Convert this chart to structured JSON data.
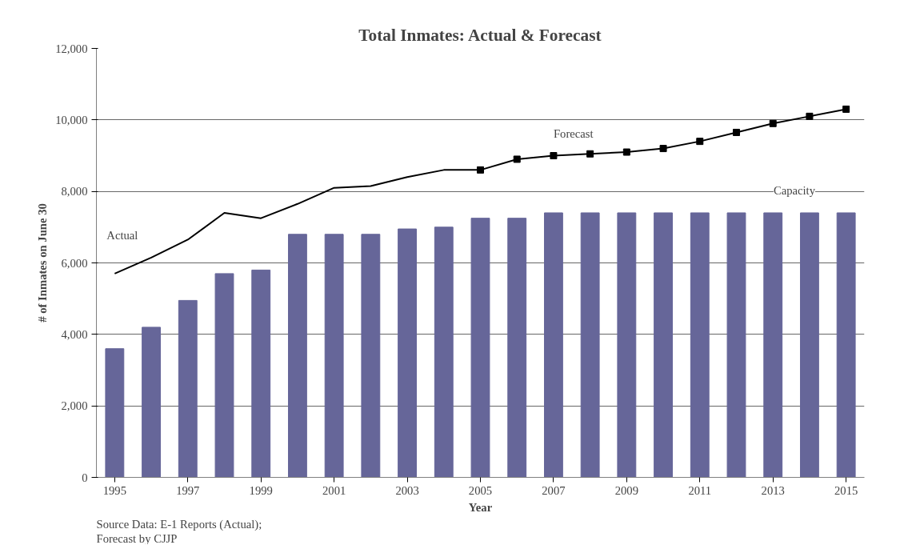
{
  "chart_data": {
    "type": "bar",
    "title": "Total Inmates: Actual & Forecast",
    "xlabel": "Year",
    "ylabel": "# of Inmates on June 30",
    "x": [
      1995,
      1996,
      1997,
      1998,
      1999,
      2000,
      2001,
      2002,
      2003,
      2004,
      2005,
      2006,
      2007,
      2008,
      2009,
      2010,
      2011,
      2012,
      2013,
      2014,
      2015
    ],
    "series": [
      {
        "name": "Capacity",
        "color": "#666699",
        "values": [
          3600,
          4200,
          4950,
          5700,
          5800,
          6800,
          6800,
          6800,
          6950,
          7000,
          7250,
          7250,
          7400,
          7400,
          7400,
          7400,
          7400,
          7400,
          7400,
          7400,
          7400
        ]
      },
      {
        "name": "Actual",
        "type": "line",
        "color": "#000000",
        "marker": "none",
        "x": [
          1995,
          1996,
          1997,
          1998,
          1999,
          2000,
          2001,
          2002,
          2003,
          2004,
          2005
        ],
        "values": [
          5700,
          6150,
          6650,
          7400,
          7250,
          7650,
          8100,
          8150,
          8400,
          8600,
          8600
        ]
      },
      {
        "name": "Forecast",
        "type": "line",
        "color": "#000000",
        "marker": "square",
        "x": [
          2005,
          2006,
          2007,
          2008,
          2009,
          2010,
          2011,
          2012,
          2013,
          2014,
          2015
        ],
        "values": [
          8600,
          8900,
          9000,
          9050,
          9100,
          9200,
          9400,
          9650,
          9900,
          10100,
          10300
        ]
      }
    ],
    "xlim": [
      1994.5,
      2015.5
    ],
    "xticks": [
      1995,
      1997,
      1999,
      2001,
      2003,
      2005,
      2007,
      2009,
      2011,
      2013,
      2015
    ],
    "ylim": [
      0,
      12000
    ],
    "yticks": [
      {
        "value": 0,
        "label": "0"
      },
      {
        "value": 2000,
        "label": "2,000"
      },
      {
        "value": 4000,
        "label": "4,000"
      },
      {
        "value": 6000,
        "label": "6,000"
      },
      {
        "value": 8000,
        "label": "8,000"
      },
      {
        "value": 10000,
        "label": "10,000"
      },
      {
        "value": 12000,
        "label": "12,000"
      }
    ],
    "grid": "y",
    "annotations": [
      "Source Data: E-1 Reports (Actual);",
      "Forecast by CJJP"
    ]
  }
}
